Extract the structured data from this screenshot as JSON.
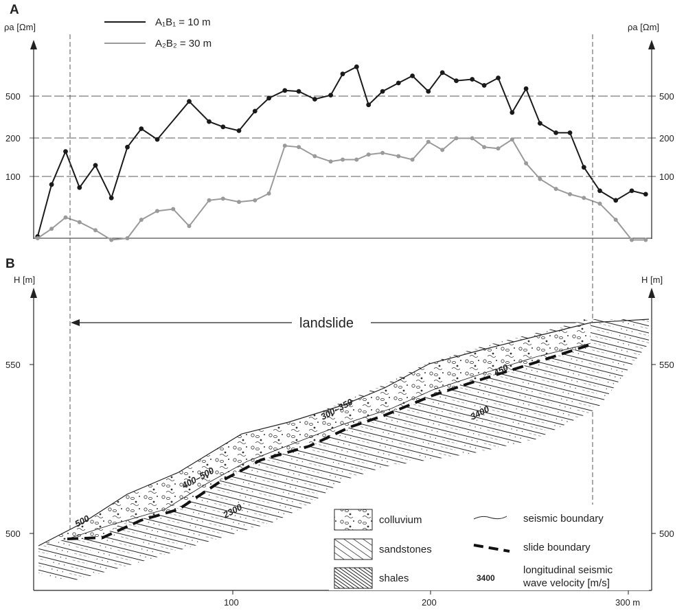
{
  "panel_a": {
    "label": "A",
    "y_axis_left": "ρa [Ωm]",
    "y_axis_right": "ρa [Ωm]",
    "y_ticks": [
      "500",
      "200",
      "100"
    ],
    "legend": [
      {
        "label": "A₁B₁  = 10 m",
        "color": "#1a1a1a"
      },
      {
        "label": "A₂B₂ = 30 m",
        "color": "#9a9a9a"
      }
    ]
  },
  "panel_b": {
    "label": "B",
    "y_axis_left": "H [m]",
    "y_axis_right": "H [m]",
    "y_ticks": [
      "550",
      "500"
    ],
    "x_ticks": [
      "100",
      "200",
      "300 m"
    ],
    "landslide_label": "landslide",
    "velocities": [
      "500",
      "400–500",
      "300–350",
      "450",
      "2300",
      "3400"
    ],
    "legend": [
      {
        "label": "colluvium"
      },
      {
        "label": "sandstones"
      },
      {
        "label": "shales"
      },
      {
        "label": "seismic boundary"
      },
      {
        "label": "slide boundary"
      },
      {
        "label": "3400",
        "kind": "velocity-example"
      },
      {
        "label": "longitudinal seismic"
      },
      {
        "label": "wave velocity [m/s]"
      }
    ]
  },
  "colors": {
    "line1": "#1a1a1a",
    "line2": "#9a9a9a",
    "slide": "#111111"
  },
  "chart_data": [
    {
      "type": "line",
      "title": "",
      "xlabel": "",
      "ylabel": "ρa [Ωm]",
      "log_scale_y": true,
      "xlim": [
        0,
        310
      ],
      "ylim": [
        25,
        1300
      ],
      "gridlines_y": [
        100,
        200,
        500
      ],
      "series": [
        {
          "name": "A₁B₁  = 10 m",
          "x": [
            2,
            9,
            16,
            23,
            31,
            39,
            47,
            54,
            62,
            78,
            88,
            95,
            103,
            111,
            118,
            126,
            133,
            141,
            149,
            155,
            162,
            168,
            175,
            183,
            190,
            198,
            205,
            212,
            220,
            226,
            233,
            240,
            247,
            254,
            262,
            269,
            276,
            284,
            292,
            300,
            307
          ],
          "values": [
            30,
            85,
            165,
            80,
            125,
            65,
            180,
            260,
            210,
            450,
            300,
            270,
            250,
            370,
            480,
            560,
            550,
            470,
            510,
            780,
            900,
            420,
            550,
            650,
            750,
            550,
            800,
            680,
            700,
            620,
            720,
            360,
            580,
            290,
            240,
            240,
            120,
            75,
            62,
            75,
            70
          ]
        },
        {
          "name": "A₂B₂ = 30 m",
          "x": [
            2,
            9,
            16,
            23,
            31,
            39,
            47,
            54,
            62,
            70,
            78,
            88,
            95,
            103,
            111,
            118,
            126,
            133,
            141,
            149,
            155,
            162,
            168,
            175,
            183,
            190,
            198,
            205,
            212,
            220,
            226,
            233,
            240,
            247,
            254,
            262,
            269,
            276,
            284,
            292,
            300,
            307
          ],
          "values": [
            29,
            35,
            44,
            40,
            34,
            28,
            29,
            42,
            50,
            52,
            37,
            62,
            64,
            60,
            62,
            71,
            185,
            180,
            150,
            135,
            140,
            140,
            155,
            160,
            150,
            140,
            200,
            170,
            215,
            215,
            180,
            175,
            210,
            130,
            95,
            78,
            70,
            65,
            58,
            42,
            28,
            28
          ]
        }
      ]
    }
  ]
}
